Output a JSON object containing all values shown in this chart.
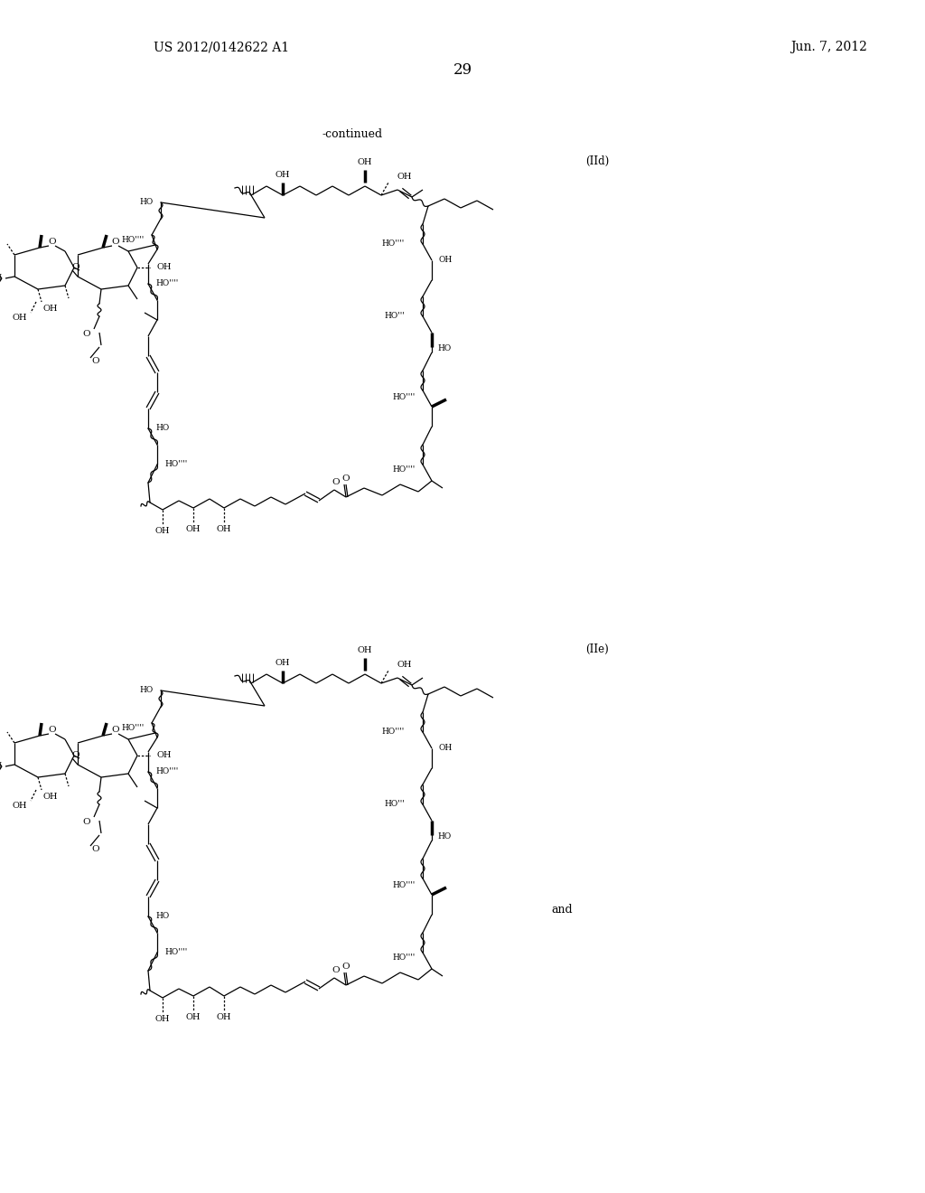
{
  "patent_number": "US 2012/0142622 A1",
  "patent_date": "Jun. 7, 2012",
  "page_number": "29",
  "continued_label": "-continued",
  "label_IId": "(IId)",
  "label_IIe": "(IIe)",
  "and_label": "and",
  "bg": "#ffffff",
  "fw": 10.24,
  "fh": 13.2,
  "dpi": 100
}
